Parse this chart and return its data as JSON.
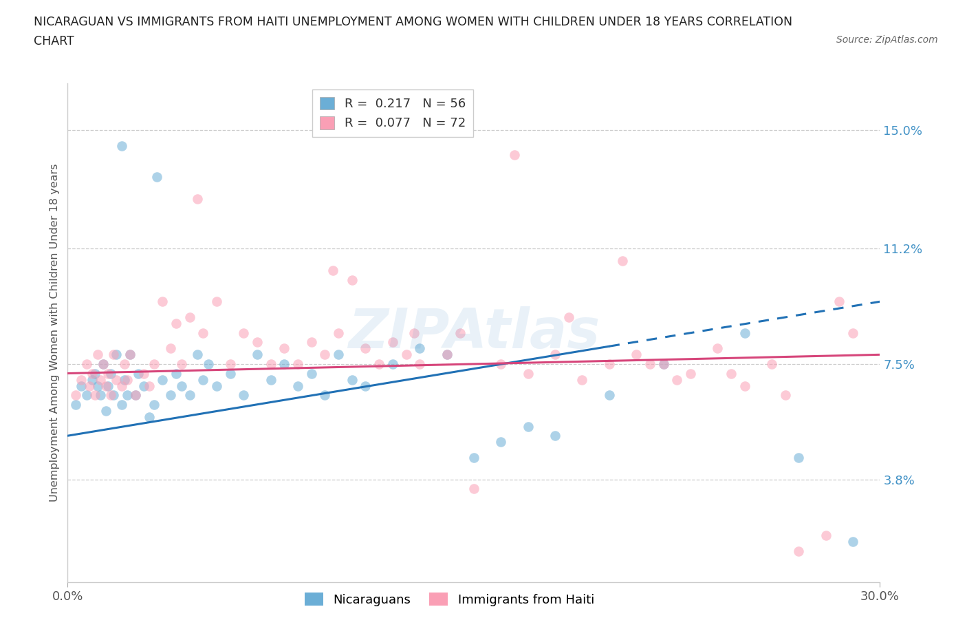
{
  "title_line1": "NICARAGUAN VS IMMIGRANTS FROM HAITI UNEMPLOYMENT AMONG WOMEN WITH CHILDREN UNDER 18 YEARS CORRELATION",
  "title_line2": "CHART",
  "source": "Source: ZipAtlas.com",
  "ylabel": "Unemployment Among Women with Children Under 18 years",
  "xlim": [
    0.0,
    30.0
  ],
  "ylim": [
    0.5,
    16.5
  ],
  "yticks": [
    3.8,
    7.5,
    11.2,
    15.0
  ],
  "xtick_labels": [
    "0.0%",
    "30.0%"
  ],
  "ytick_labels": [
    "3.8%",
    "7.5%",
    "11.2%",
    "15.0%"
  ],
  "hlines": [
    3.8,
    7.5,
    11.2,
    15.0
  ],
  "blue_color": "#6baed6",
  "pink_color": "#fa9fb5",
  "blue_line_color": "#2171b5",
  "pink_line_color": "#d6457a",
  "ytick_color": "#4292c6",
  "R_blue": 0.217,
  "N_blue": 56,
  "R_pink": 0.077,
  "N_pink": 72,
  "watermark": "ZIPAtlas",
  "blue_line_start_y": 5.2,
  "blue_line_end_y": 9.5,
  "pink_line_start_y": 7.2,
  "pink_line_end_y": 7.8,
  "blue_dash_start_x": 20.0,
  "blue_x": [
    0.3,
    0.5,
    0.7,
    0.9,
    1.0,
    1.1,
    1.2,
    1.3,
    1.4,
    1.5,
    1.6,
    1.7,
    1.8,
    2.0,
    2.1,
    2.2,
    2.3,
    2.5,
    2.6,
    2.8,
    3.0,
    3.2,
    3.5,
    3.8,
    4.0,
    4.2,
    4.5,
    4.8,
    5.0,
    5.2,
    5.5,
    6.0,
    6.5,
    7.0,
    7.5,
    8.0,
    8.5,
    9.0,
    9.5,
    10.0,
    10.5,
    11.0,
    12.0,
    13.0,
    14.0,
    15.0,
    16.0,
    17.0,
    18.0,
    20.0,
    22.0,
    25.0,
    27.0,
    29.0,
    3.3,
    2.0
  ],
  "blue_y": [
    6.2,
    6.8,
    6.5,
    7.0,
    7.2,
    6.8,
    6.5,
    7.5,
    6.0,
    6.8,
    7.2,
    6.5,
    7.8,
    6.2,
    7.0,
    6.5,
    7.8,
    6.5,
    7.2,
    6.8,
    5.8,
    6.2,
    7.0,
    6.5,
    7.2,
    6.8,
    6.5,
    7.8,
    7.0,
    7.5,
    6.8,
    7.2,
    6.5,
    7.8,
    7.0,
    7.5,
    6.8,
    7.2,
    6.5,
    7.8,
    7.0,
    6.8,
    7.5,
    8.0,
    7.8,
    4.5,
    5.0,
    5.5,
    5.2,
    6.5,
    7.5,
    8.5,
    4.5,
    1.8,
    13.5,
    14.5
  ],
  "pink_x": [
    0.3,
    0.5,
    0.7,
    0.8,
    0.9,
    1.0,
    1.1,
    1.2,
    1.3,
    1.4,
    1.5,
    1.6,
    1.7,
    1.8,
    2.0,
    2.1,
    2.2,
    2.3,
    2.5,
    2.8,
    3.0,
    3.2,
    3.5,
    3.8,
    4.0,
    4.2,
    4.5,
    5.0,
    5.5,
    6.0,
    6.5,
    7.0,
    7.5,
    8.0,
    8.5,
    9.0,
    9.5,
    10.0,
    10.5,
    11.0,
    11.5,
    12.0,
    12.5,
    13.0,
    14.0,
    14.5,
    15.0,
    16.0,
    17.0,
    18.0,
    19.0,
    20.0,
    21.0,
    22.0,
    23.0,
    24.0,
    25.0,
    26.0,
    27.0,
    28.0,
    29.0,
    4.8,
    9.8,
    12.8,
    16.5,
    20.5,
    28.5,
    24.5,
    26.5,
    18.5,
    21.5,
    22.5
  ],
  "pink_y": [
    6.5,
    7.0,
    7.5,
    6.8,
    7.2,
    6.5,
    7.8,
    7.0,
    7.5,
    6.8,
    7.2,
    6.5,
    7.8,
    7.0,
    6.8,
    7.5,
    7.0,
    7.8,
    6.5,
    7.2,
    6.8,
    7.5,
    9.5,
    8.0,
    8.8,
    7.5,
    9.0,
    8.5,
    9.5,
    7.5,
    8.5,
    8.2,
    7.5,
    8.0,
    7.5,
    8.2,
    7.8,
    8.5,
    10.2,
    8.0,
    7.5,
    8.2,
    7.8,
    7.5,
    7.8,
    8.5,
    3.5,
    7.5,
    7.2,
    7.8,
    7.0,
    7.5,
    7.8,
    7.5,
    7.2,
    8.0,
    6.8,
    7.5,
    1.5,
    2.0,
    8.5,
    12.8,
    10.5,
    8.5,
    14.2,
    10.8,
    9.5,
    7.2,
    6.5,
    9.0,
    7.5,
    7.0
  ]
}
